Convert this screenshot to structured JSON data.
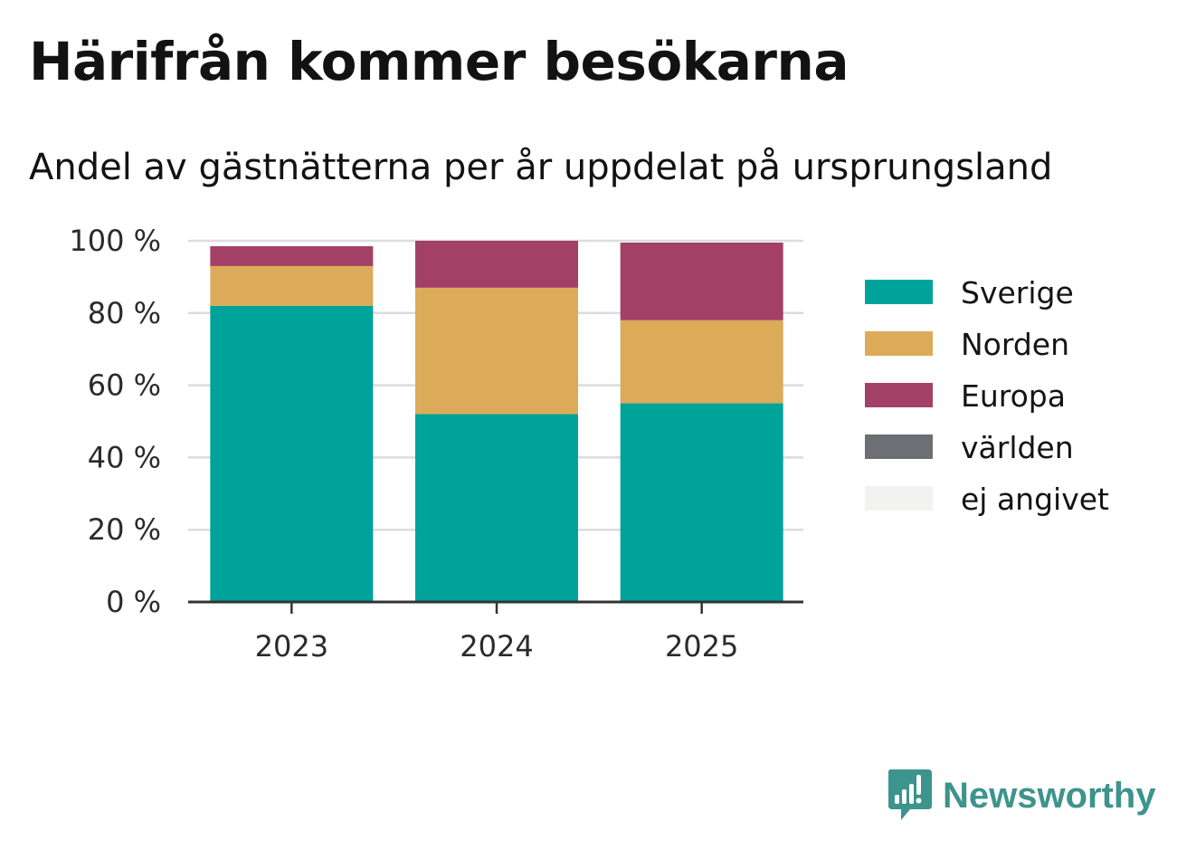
{
  "title": "Härifrån kommer besökarna",
  "subtitle": "Andel av gästnätterna per år uppdelat på ursprungsland",
  "brand": {
    "name": "Newsworthy",
    "icon": "newsworthy-logo-icon",
    "color": "#3d948c"
  },
  "chart_data": {
    "type": "bar",
    "stacked": true,
    "categories": [
      "2023",
      "2024",
      "2025"
    ],
    "series": [
      {
        "name": "Sverige",
        "color": "#00a39a",
        "values": [
          82,
          52,
          55
        ]
      },
      {
        "name": "Norden",
        "color": "#dbab59",
        "values": [
          11,
          35,
          23
        ]
      },
      {
        "name": "Europa",
        "color": "#a34065",
        "values": [
          5.5,
          13,
          21.5
        ]
      },
      {
        "name": "världen",
        "color": "#6e6e75",
        "values": [
          0,
          0,
          0
        ]
      },
      {
        "name": "ej angivet",
        "color": "#f2f2f0",
        "values": [
          0,
          0,
          0
        ]
      }
    ],
    "ylim": [
      0,
      100
    ],
    "yticks": [
      0,
      20,
      40,
      60,
      80,
      100
    ],
    "ytick_labels": [
      "0 %",
      "20 %",
      "40 %",
      "60 %",
      "80 %",
      "100 %"
    ],
    "xlabel": "",
    "ylabel": "",
    "grid": true,
    "legend_position": "right"
  }
}
